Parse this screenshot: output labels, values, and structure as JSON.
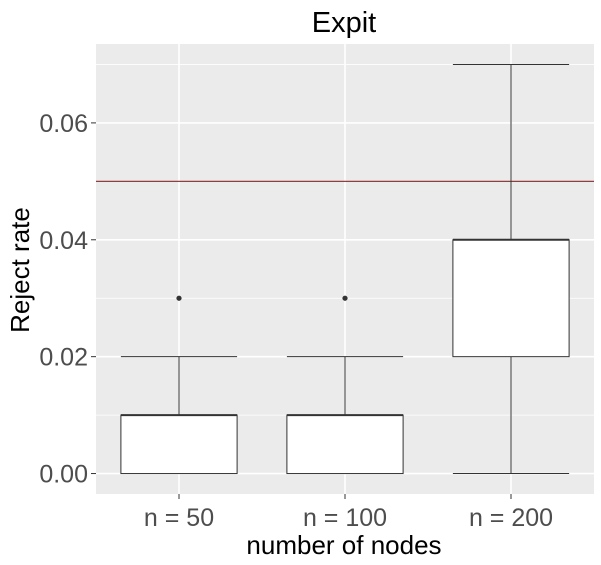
{
  "chart_data": {
    "type": "boxplot",
    "title": "Expit",
    "xlabel": "number of nodes",
    "ylabel": "Reject rate",
    "categories": [
      "n = 50",
      "n = 100",
      "n = 200"
    ],
    "boxes": [
      {
        "category": "n = 50",
        "min": 0.0,
        "q1": 0.0,
        "median": 0.01,
        "q3": 0.01,
        "max": 0.02,
        "outliers": [
          0.03
        ]
      },
      {
        "category": "n = 100",
        "min": 0.0,
        "q1": 0.0,
        "median": 0.01,
        "q3": 0.01,
        "max": 0.02,
        "outliers": [
          0.03
        ]
      },
      {
        "category": "n = 200",
        "min": 0.0,
        "q1": 0.02,
        "median": 0.04,
        "q3": 0.04,
        "max": 0.07,
        "outliers": []
      }
    ],
    "reference_line": {
      "y": 0.05,
      "color": "#e41a1c"
    },
    "yticks": [
      "0.00",
      "0.02",
      "0.04",
      "0.06"
    ],
    "ylim": [
      -0.0035,
      0.0735
    ],
    "grid": true,
    "colors": {
      "panel": "#ebebeb",
      "gridline": "#ffffff",
      "box_fill": "#ffffff",
      "box_stroke": "#333333",
      "outlier": "#333333"
    }
  }
}
